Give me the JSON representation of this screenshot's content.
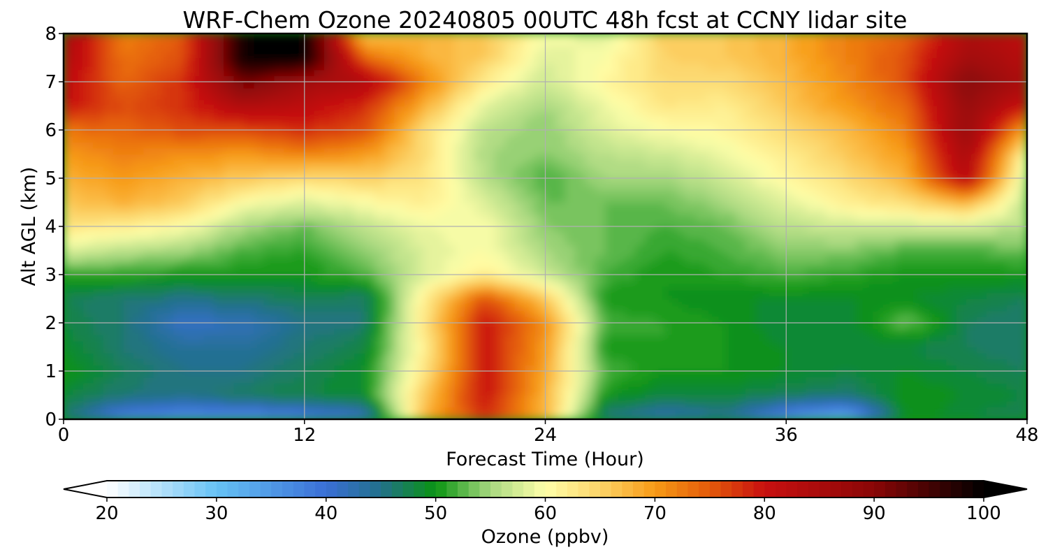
{
  "chart_data": {
    "type": "heatmap",
    "title": "WRF-Chem Ozone  20240805 00UTC 48h fcst at CCNY lidar site",
    "xlabel": "Forecast Time (Hour)",
    "ylabel": "Alt AGL (km)",
    "xlim": [
      0,
      48
    ],
    "ylim": [
      0,
      8
    ],
    "x_ticks": [
      "0",
      "12",
      "24",
      "36",
      "48"
    ],
    "y_ticks": [
      "0",
      "1",
      "2",
      "3",
      "4",
      "5",
      "6",
      "7",
      "8"
    ],
    "grid": true,
    "x_hours": [
      0,
      3,
      6,
      9,
      12,
      15,
      18,
      21,
      24,
      27,
      30,
      33,
      36,
      39,
      42,
      45,
      48
    ],
    "y_km": [
      0,
      0.5,
      1,
      1.5,
      2,
      2.5,
      3,
      3.5,
      4,
      4.5,
      5,
      5.5,
      6,
      6.5,
      7,
      7.5,
      8
    ],
    "values_ppbv": [
      [
        46,
        37,
        35,
        35,
        37,
        40,
        68,
        78,
        68,
        45,
        42,
        44,
        35,
        31,
        50,
        48,
        47
      ],
      [
        48,
        46,
        45,
        47,
        48,
        49,
        66,
        80,
        68,
        50,
        48,
        48,
        47,
        46,
        50,
        49,
        48
      ],
      [
        50,
        47,
        45,
        45,
        47,
        49,
        63,
        80,
        69,
        52,
        50,
        50,
        49,
        48,
        49,
        48,
        47
      ],
      [
        49,
        46,
        44,
        44,
        46,
        48,
        62,
        80,
        70,
        50,
        51,
        50,
        49,
        48,
        48,
        47,
        46
      ],
      [
        48,
        46,
        41,
        42,
        45,
        46,
        63,
        80,
        71,
        52,
        51,
        50,
        48,
        48,
        53,
        47,
        46
      ],
      [
        47,
        46,
        45,
        46,
        47,
        46,
        62,
        76,
        66,
        50,
        50,
        49,
        49,
        49,
        49,
        48,
        47
      ],
      [
        51,
        51,
        50,
        50,
        50,
        52,
        58,
        62,
        57,
        52,
        50,
        51,
        52,
        51,
        50,
        50,
        50
      ],
      [
        58,
        56,
        55,
        52,
        51,
        54,
        58,
        60,
        55,
        53,
        51,
        52,
        54,
        54,
        52,
        52,
        53
      ],
      [
        63,
        62,
        60,
        55,
        53,
        56,
        59,
        60,
        54,
        53,
        52,
        53,
        56,
        57,
        57,
        57,
        56
      ],
      [
        66,
        68,
        66,
        60,
        58,
        60,
        62,
        58,
        53,
        53,
        53,
        55,
        58,
        62,
        64,
        68,
        56
      ],
      [
        68,
        70,
        68,
        66,
        64,
        65,
        63,
        56,
        52,
        55,
        55,
        57,
        61,
        64,
        68,
        83,
        57
      ],
      [
        70,
        72,
        71,
        70,
        72,
        70,
        64,
        55,
        54,
        56,
        57,
        59,
        62,
        66,
        70,
        85,
        60
      ],
      [
        73,
        74,
        76,
        76,
        78,
        76,
        64,
        56,
        54,
        58,
        60,
        61,
        64,
        67,
        72,
        88,
        69
      ],
      [
        80,
        76,
        78,
        84,
        82,
        78,
        68,
        58,
        55,
        59,
        63,
        62,
        66,
        70,
        74,
        88,
        80
      ],
      [
        82,
        74,
        78,
        92,
        86,
        84,
        72,
        62,
        57,
        61,
        64,
        64,
        67,
        71,
        76,
        90,
        84
      ],
      [
        84,
        73,
        76,
        100,
        100,
        74,
        68,
        66,
        58,
        60,
        65,
        66,
        68,
        72,
        76,
        86,
        83
      ],
      [
        86,
        72,
        75,
        100,
        100,
        66,
        68,
        66,
        60,
        58,
        66,
        66,
        68,
        72,
        74,
        84,
        82
      ]
    ],
    "colorbar": {
      "label": "Ozone  (ppbv)",
      "min": 20,
      "max": 100,
      "ticks": [
        "20",
        "30",
        "40",
        "50",
        "60",
        "70",
        "80",
        "90",
        "100"
      ],
      "extend": "both",
      "levels": 80,
      "color_stops": [
        {
          "v": 20,
          "c": "#ffffff"
        },
        {
          "v": 30,
          "c": "#66c2f5"
        },
        {
          "v": 40,
          "c": "#3a6fd6"
        },
        {
          "v": 45,
          "c": "#22708a"
        },
        {
          "v": 50,
          "c": "#0a9412"
        },
        {
          "v": 55,
          "c": "#a8d880"
        },
        {
          "v": 60,
          "c": "#ffffaa"
        },
        {
          "v": 65,
          "c": "#fcd468"
        },
        {
          "v": 70,
          "c": "#f79a16"
        },
        {
          "v": 75,
          "c": "#e35a0a"
        },
        {
          "v": 80,
          "c": "#c81010"
        },
        {
          "v": 90,
          "c": "#8a0606"
        },
        {
          "v": 100,
          "c": "#000000"
        }
      ]
    }
  }
}
